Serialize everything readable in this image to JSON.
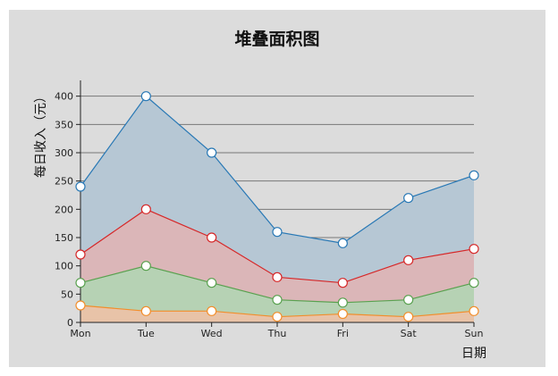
{
  "chart_data": {
    "type": "area",
    "stacked": true,
    "title": "堆叠面积图",
    "xlabel": "日期",
    "ylabel": "每日收入（元）",
    "categories": [
      "Mon",
      "Tue",
      "Wed",
      "Thu",
      "Fri",
      "Sat",
      "Sun"
    ],
    "ylim": [
      0,
      420
    ],
    "yticks": [
      0,
      50,
      100,
      150,
      200,
      250,
      300,
      350,
      400
    ],
    "grid": "horizontal",
    "legend": "none",
    "series": [
      {
        "values": [
          30,
          20,
          20,
          10,
          15,
          10,
          20
        ],
        "color": "#f28e2b",
        "fill": "#e8c3a8"
      },
      {
        "values": [
          40,
          80,
          50,
          30,
          20,
          30,
          50
        ],
        "color": "#59a14f",
        "fill": "#b6d2b4"
      },
      {
        "values": [
          50,
          100,
          80,
          40,
          35,
          70,
          60
        ],
        "color": "#d62728",
        "fill": "#dbb6b8"
      },
      {
        "values": [
          120,
          200,
          150,
          80,
          70,
          110,
          130
        ],
        "color": "#2878b5",
        "fill": "#b6c7d4"
      }
    ]
  }
}
